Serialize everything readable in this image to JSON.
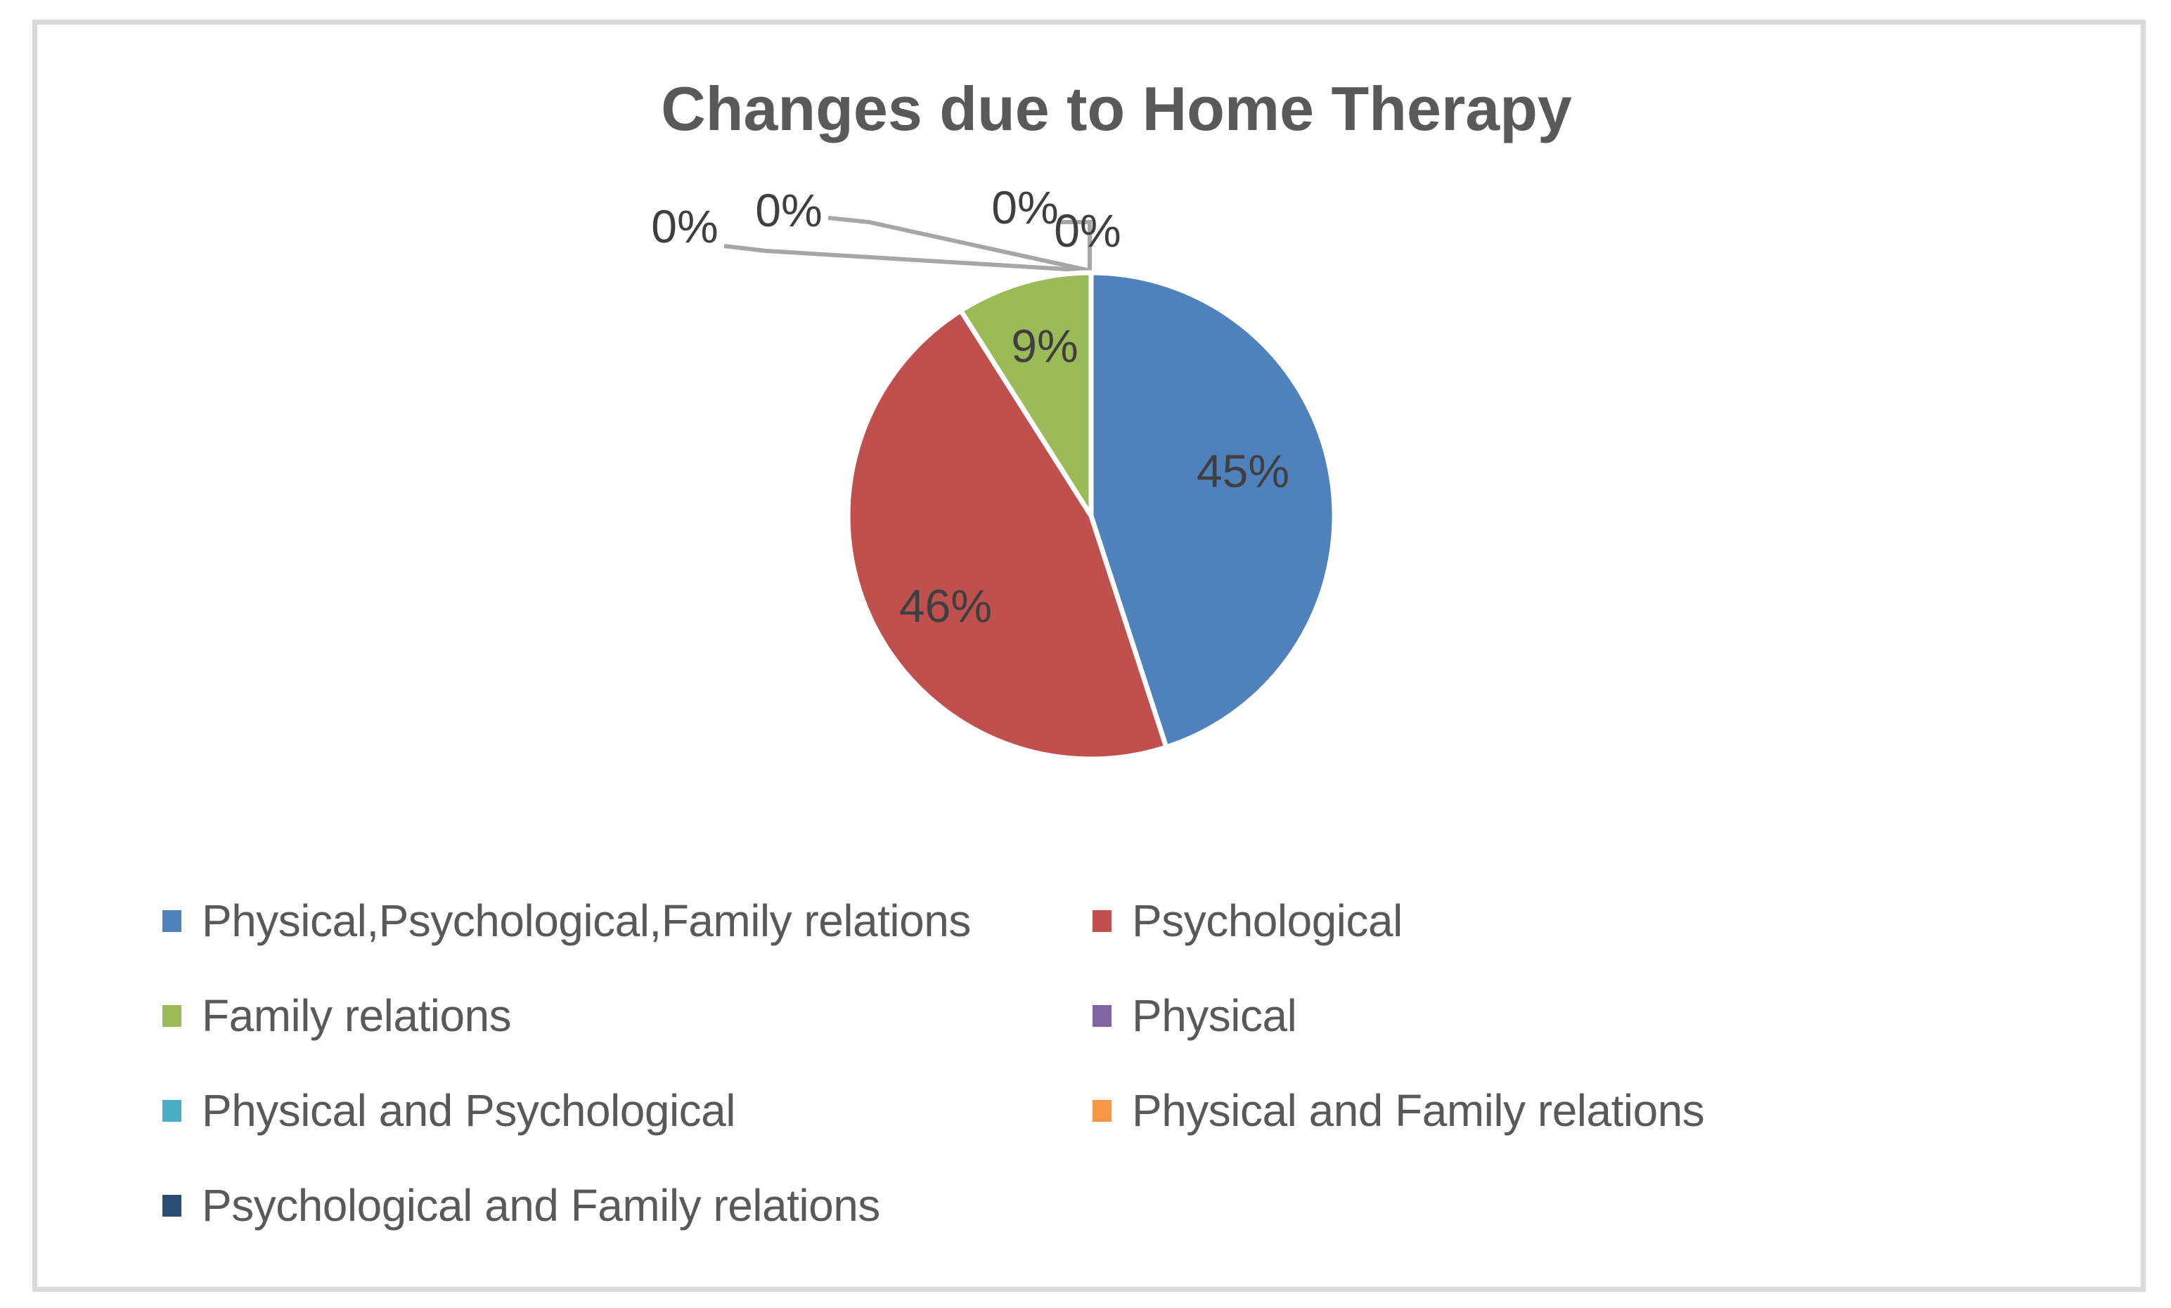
{
  "title": "Changes due to Home Therapy",
  "chart_data": {
    "type": "pie",
    "title": "Changes due to Home Therapy",
    "unit": "percent",
    "start_angle_deg": 0,
    "direction": "clockwise",
    "legend_position": "bottom",
    "slices": [
      {
        "label": "Physical,Psychological,Family relations",
        "value": 45,
        "data_label": "45%",
        "color": "#4F81BD"
      },
      {
        "label": "Psychological",
        "value": 46,
        "data_label": "46%",
        "color": "#C0504D"
      },
      {
        "label": "Family relations",
        "value": 9,
        "data_label": "9%",
        "color": "#9BBB59"
      },
      {
        "label": "Physical",
        "value": 0,
        "data_label": "0%",
        "color": "#8064A2"
      },
      {
        "label": "Physical and Psychological",
        "value": 0,
        "data_label": "0%",
        "color": "#4BACC6"
      },
      {
        "label": "Physical and Family relations",
        "value": 0,
        "data_label": "0%",
        "color": "#F79646"
      },
      {
        "label": "Psychological and Family relations",
        "value": 0,
        "data_label": "0%",
        "color": "#2C4D75"
      }
    ]
  },
  "colors": {
    "frame_border": "#D9D9D9",
    "title_text": "#595959",
    "data_label_text": "#3F3F3F",
    "legend_text": "#595959",
    "leader_line": "#A6A6A6",
    "slice_separator": "#FFFFFF"
  }
}
